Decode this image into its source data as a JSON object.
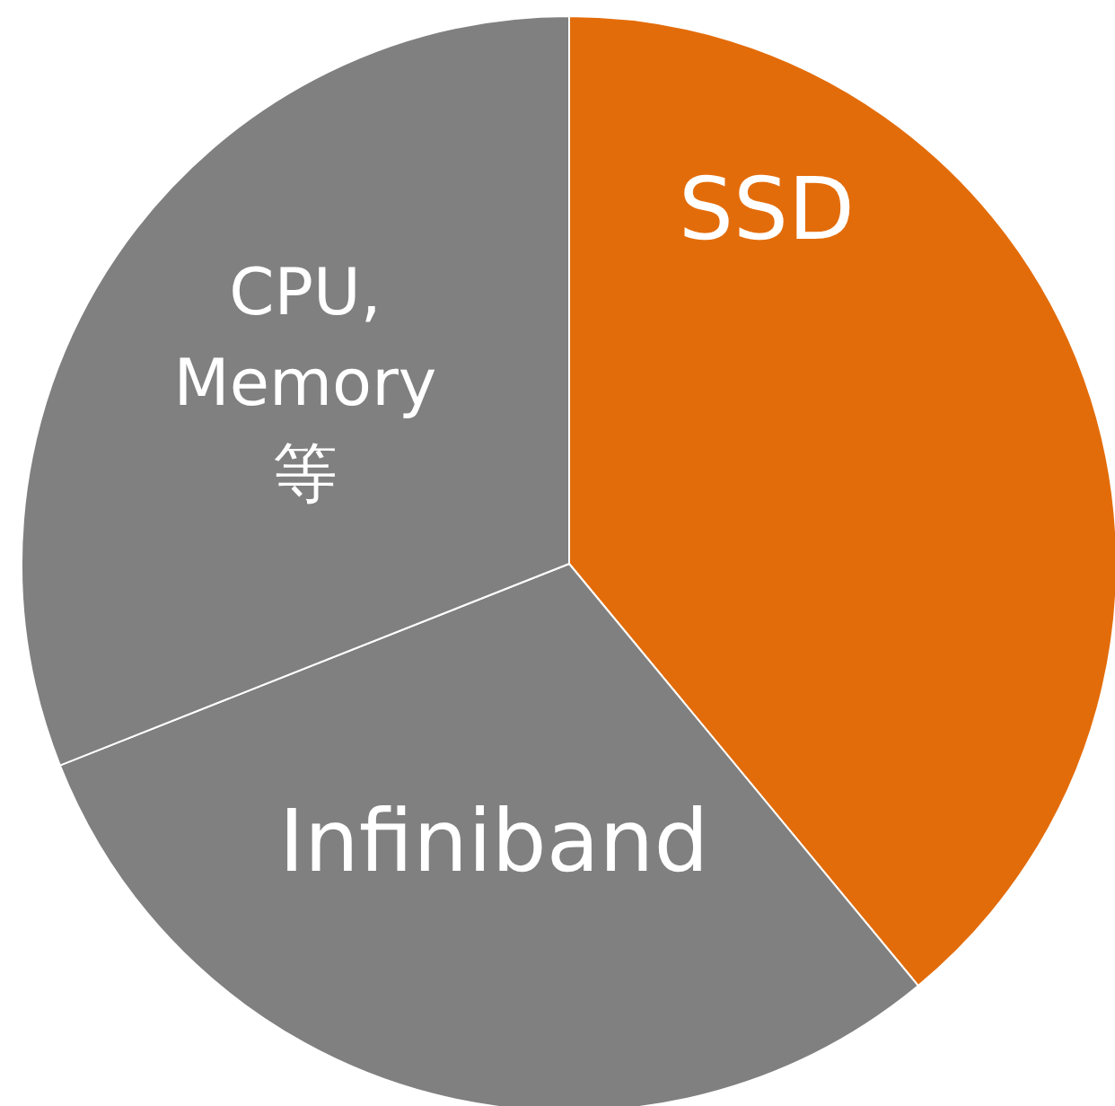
{
  "chart_data": {
    "type": "pie",
    "categories": [
      "SSD",
      "Infiniband",
      "CPU, Memory 等"
    ],
    "values": [
      39,
      30,
      31
    ],
    "colors": [
      "#e36c0a",
      "#808080",
      "#808080"
    ]
  }
}
